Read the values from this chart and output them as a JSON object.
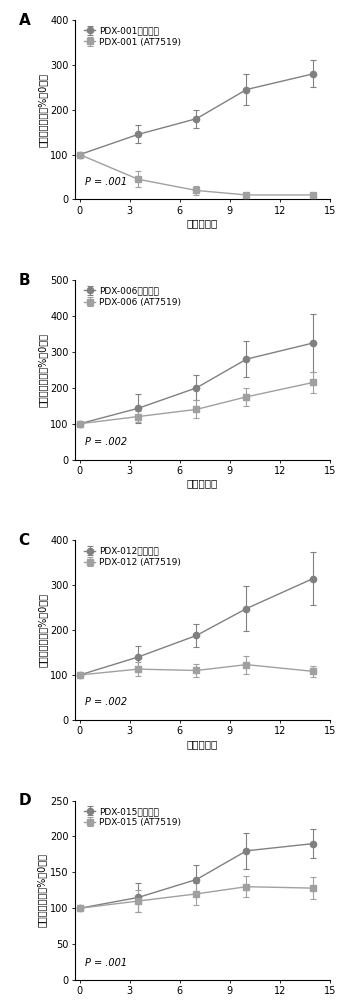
{
  "panels": [
    {
      "label": "A",
      "ctrl_label": "PDX-001（对照）",
      "treat_label": "PDX-001 (AT7519)",
      "p_text": "P = .001",
      "ylim": [
        0,
        400
      ],
      "yticks": [
        0,
        100,
        200,
        300,
        400
      ],
      "ctrl_x": [
        0,
        3.5,
        7,
        10,
        14
      ],
      "ctrl_y": [
        100,
        145,
        180,
        245,
        280
      ],
      "ctrl_yerr": [
        0,
        20,
        20,
        35,
        30
      ],
      "treat_x": [
        0,
        3.5,
        7,
        10,
        14
      ],
      "treat_y": [
        100,
        45,
        20,
        10,
        10
      ],
      "treat_yerr": [
        0,
        18,
        10,
        5,
        5
      ]
    },
    {
      "label": "B",
      "ctrl_label": "PDX-006（对照）",
      "treat_label": "PDX-006 (AT7519)",
      "p_text": "P = .002",
      "ylim": [
        0,
        500
      ],
      "yticks": [
        0,
        100,
        200,
        300,
        400,
        500
      ],
      "ctrl_x": [
        0,
        3.5,
        7,
        10,
        14
      ],
      "ctrl_y": [
        100,
        143,
        200,
        280,
        325
      ],
      "ctrl_yerr": [
        0,
        40,
        35,
        50,
        80
      ],
      "treat_x": [
        0,
        3.5,
        7,
        10,
        14
      ],
      "treat_y": [
        100,
        120,
        140,
        175,
        215
      ],
      "treat_yerr": [
        0,
        15,
        25,
        25,
        30
      ]
    },
    {
      "label": "C",
      "ctrl_label": "PDX-012（对照）",
      "treat_label": "PDX-012 (AT7519)",
      "p_text": "P = .002",
      "ylim": [
        0,
        400
      ],
      "yticks": [
        0,
        100,
        200,
        300,
        400
      ],
      "ctrl_x": [
        0,
        3.5,
        7,
        10,
        14
      ],
      "ctrl_y": [
        100,
        140,
        188,
        248,
        315
      ],
      "ctrl_yerr": [
        0,
        25,
        25,
        50,
        60
      ],
      "treat_x": [
        0,
        3.5,
        7,
        10,
        14
      ],
      "treat_y": [
        100,
        113,
        110,
        123,
        108
      ],
      "treat_yerr": [
        0,
        15,
        15,
        20,
        12
      ]
    },
    {
      "label": "D",
      "ctrl_label": "PDX-015（对照）",
      "treat_label": "PDX-015 (AT7519)",
      "p_text": "P = .001",
      "ylim": [
        0,
        250
      ],
      "yticks": [
        0,
        50,
        100,
        150,
        200,
        250
      ],
      "ctrl_x": [
        0,
        3.5,
        7,
        10,
        14
      ],
      "ctrl_y": [
        100,
        115,
        140,
        180,
        190
      ],
      "ctrl_yerr": [
        0,
        20,
        20,
        25,
        20
      ],
      "treat_x": [
        0,
        3.5,
        7,
        10,
        14
      ],
      "treat_y": [
        100,
        110,
        120,
        130,
        128
      ],
      "treat_yerr": [
        0,
        15,
        15,
        15,
        15
      ]
    }
  ],
  "ctrl_color": "#808080",
  "treat_color": "#a0a0a0",
  "ctrl_marker": "o",
  "treat_marker": "s",
  "xlabel": "时间（天）",
  "ylabel": "相对肿瘾体积（%第0天）",
  "xlim": [
    -0.3,
    15
  ],
  "xticks": [
    0,
    3,
    6,
    9,
    12,
    15
  ],
  "background_color": "#ffffff",
  "font_size": 7,
  "marker_size": 4.5,
  "linewidth": 1.0,
  "capsize": 2.5
}
